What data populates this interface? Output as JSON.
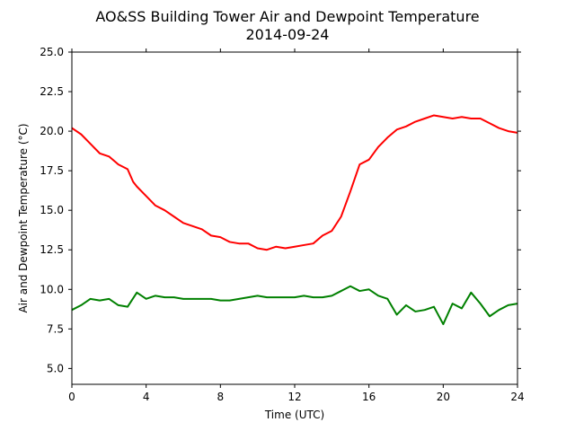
{
  "chart_data": {
    "type": "line",
    "title": "AO&SS Building Tower Air and Dewpoint Temperature",
    "subtitle": "2014-09-24",
    "xlabel": "Time (UTC)",
    "ylabel": "Air and Dewpoint Temperature (°C)",
    "xlim": [
      0,
      24
    ],
    "ylim": [
      4.0,
      25.0
    ],
    "x_ticks": [
      0,
      4,
      8,
      12,
      16,
      20,
      24
    ],
    "x_tick_labels": [
      "0",
      "4",
      "8",
      "12",
      "16",
      "20",
      "24"
    ],
    "y_ticks": [
      5.0,
      7.5,
      10.0,
      12.5,
      15.0,
      17.5,
      20.0,
      22.5,
      25.0
    ],
    "y_tick_labels": [
      "5.0",
      "7.5",
      "10.0",
      "12.5",
      "15.0",
      "17.5",
      "20.0",
      "22.5",
      "25.0"
    ],
    "grid": false,
    "series": [
      {
        "color": "#ff0000",
        "x": [
          0,
          0.5,
          1.0,
          1.5,
          2.0,
          2.5,
          3.0,
          3.3,
          3.5,
          4.0,
          4.5,
          5.0,
          5.5,
          6.0,
          6.5,
          7.0,
          7.5,
          8.0,
          8.5,
          9.0,
          9.5,
          10.0,
          10.5,
          11.0,
          11.5,
          12.0,
          12.5,
          13.0,
          13.5,
          14.0,
          14.5,
          15.0,
          15.5,
          16.0,
          16.5,
          17.0,
          17.5,
          18.0,
          18.5,
          19.0,
          19.5,
          20.0,
          20.5,
          21.0,
          21.5,
          22.0,
          22.5,
          23.0,
          23.5,
          24.0
        ],
        "y": [
          20.2,
          19.8,
          19.2,
          18.6,
          18.4,
          17.9,
          17.6,
          16.8,
          16.5,
          15.9,
          15.3,
          15.0,
          14.6,
          14.2,
          14.0,
          13.8,
          13.4,
          13.3,
          13.0,
          12.9,
          12.9,
          12.6,
          12.5,
          12.7,
          12.6,
          12.7,
          12.8,
          12.9,
          13.4,
          13.7,
          14.6,
          16.2,
          17.9,
          18.2,
          19.0,
          19.6,
          20.1,
          20.3,
          20.6,
          20.8,
          21.0,
          20.9,
          20.8,
          20.9,
          20.8,
          20.8,
          20.5,
          20.2,
          20.0,
          19.9
        ]
      },
      {
        "color": "#008000",
        "x": [
          0,
          0.5,
          1.0,
          1.5,
          2.0,
          2.5,
          3.0,
          3.5,
          4.0,
          4.5,
          5.0,
          5.5,
          6.0,
          6.5,
          7.0,
          7.5,
          8.0,
          8.5,
          9.0,
          9.5,
          10.0,
          10.5,
          11.0,
          11.5,
          12.0,
          12.5,
          13.0,
          13.5,
          14.0,
          14.5,
          15.0,
          15.5,
          16.0,
          16.5,
          17.0,
          17.5,
          18.0,
          18.5,
          19.0,
          19.5,
          20.0,
          20.5,
          21.0,
          21.5,
          22.0,
          22.5,
          23.0,
          23.5,
          24.0
        ],
        "y": [
          8.7,
          9.0,
          9.4,
          9.3,
          9.4,
          9.0,
          8.9,
          9.8,
          9.4,
          9.6,
          9.5,
          9.5,
          9.4,
          9.4,
          9.4,
          9.4,
          9.3,
          9.3,
          9.4,
          9.5,
          9.6,
          9.5,
          9.5,
          9.5,
          9.5,
          9.6,
          9.5,
          9.5,
          9.6,
          9.9,
          10.2,
          9.9,
          10.0,
          9.6,
          9.4,
          8.4,
          9.0,
          8.6,
          8.7,
          8.9,
          7.8,
          9.1,
          8.8,
          9.8,
          9.1,
          8.3,
          8.7,
          9.0,
          9.1
        ]
      }
    ]
  }
}
